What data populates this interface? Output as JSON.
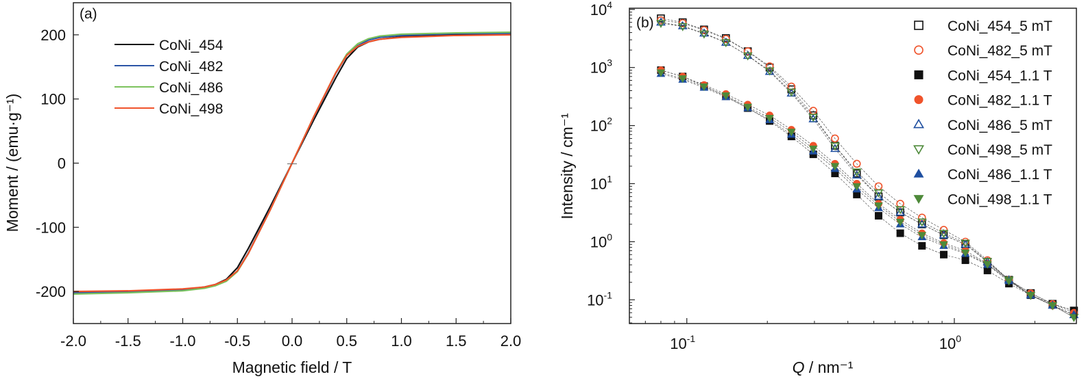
{
  "chart_data": [
    {
      "type": "line",
      "panel_label": "(a)",
      "xlabel": "Magnetic field / T",
      "ylabel": "Moment / (emu·g⁻¹)",
      "xlim": [
        -2.0,
        2.0
      ],
      "ylim": [
        -250,
        250
      ],
      "xticks": [
        -2.0,
        -1.5,
        -1.0,
        -0.5,
        0.0,
        0.5,
        1.0,
        1.5,
        2.0
      ],
      "xtick_labels": [
        "-2.0",
        "-1.5",
        "-1.0",
        "-0.5",
        "0.0",
        "0.5",
        "1.0",
        "1.5",
        "2.0"
      ],
      "yticks": [
        -200,
        -100,
        0,
        100,
        200
      ],
      "ytick_labels": [
        "-200",
        "-100",
        "0",
        "100",
        "200"
      ],
      "grid": false,
      "legend_position": "top-left",
      "x": [
        -2,
        -1.5,
        -1,
        -0.8,
        -0.7,
        -0.6,
        -0.5,
        -0.4,
        -0.2,
        0,
        0.2,
        0.4,
        0.5,
        0.6,
        0.7,
        0.8,
        1,
        1.5,
        2
      ],
      "series": [
        {
          "name": "CoNi_454",
          "color": "#111111",
          "values": [
            -201,
            -200,
            -197,
            -193,
            -189,
            -181,
            -163,
            -133,
            -68,
            0,
            68,
            133,
            163,
            181,
            189,
            193,
            197,
            200,
            201
          ]
        },
        {
          "name": "CoNi_482",
          "color": "#2b55a6",
          "values": [
            -202,
            -201,
            -198,
            -194,
            -190,
            -183,
            -168,
            -140,
            -72,
            0,
            72,
            140,
            168,
            183,
            192,
            196,
            199,
            202,
            202
          ]
        },
        {
          "name": "CoNi_486",
          "color": "#7cc25c",
          "values": [
            -204,
            -202,
            -199,
            -195,
            -191,
            -184,
            -169,
            -141,
            -73,
            0,
            73,
            141,
            170,
            186,
            194,
            198,
            201,
            203,
            204
          ]
        },
        {
          "name": "CoNi_498",
          "color": "#f0532b",
          "values": [
            -200,
            -199,
            -196,
            -193,
            -189,
            -182,
            -168,
            -141,
            -73,
            0,
            73,
            141,
            168,
            182,
            189,
            193,
            196,
            199,
            200
          ]
        }
      ]
    },
    {
      "type": "scatter",
      "panel_label": "(b)",
      "xlabel_italic": "Q",
      "xlabel_rest": " / nm⁻¹",
      "ylabel": "Intensity / cm⁻¹",
      "xscale": "log",
      "yscale": "log",
      "xlim": [
        0.061,
        2.86
      ],
      "ylim": [
        0.039,
        10500
      ],
      "xticks": [
        0.1,
        1
      ],
      "xtick_labels": [
        {
          "base": "10",
          "exp": "-1"
        },
        {
          "base": "10",
          "exp": "0"
        }
      ],
      "yticks": [
        0.1,
        1,
        10,
        100,
        1000,
        10000
      ],
      "ytick_labels": [
        {
          "base": "10",
          "exp": "-1"
        },
        {
          "base": "10",
          "exp": "0"
        },
        {
          "base": "10",
          "exp": "1"
        },
        {
          "base": "10",
          "exp": "2"
        },
        {
          "base": "10",
          "exp": "3"
        },
        {
          "base": "10",
          "exp": "4"
        }
      ],
      "grid": false,
      "legend_position": "top-right",
      "x": [
        0.08,
        0.0965,
        0.116,
        0.14,
        0.169,
        0.204,
        0.246,
        0.297,
        0.358,
        0.432,
        0.521,
        0.628,
        0.757,
        0.913,
        1.1,
        1.33,
        1.6,
        1.93,
        2.33,
        2.8
      ],
      "series": [
        {
          "name": "CoNi_454_5 mT",
          "marker": "square-open",
          "color": "#111111",
          "values": [
            7000,
            6000,
            4500,
            3200,
            1900,
            1000,
            420,
            150,
            45,
            15,
            6,
            3.2,
            2.0,
            1.3,
            0.9,
            0.45,
            0.22,
            0.13,
            0.085,
            0.065
          ]
        },
        {
          "name": "CoNi_482_5 mT",
          "marker": "circle-open",
          "color": "#f0532b",
          "values": [
            6500,
            5800,
            4400,
            3100,
            1900,
            1050,
            470,
            180,
            60,
            22,
            9,
            4.5,
            2.6,
            1.6,
            1.0,
            0.48,
            0.22,
            0.12,
            0.08,
            0.055
          ]
        },
        {
          "name": "CoNi_454_1.1 T",
          "marker": "square-filled",
          "color": "#111111",
          "values": [
            900,
            700,
            480,
            320,
            200,
            120,
            65,
            32,
            15,
            6.5,
            2.8,
            1.4,
            0.85,
            0.6,
            0.48,
            0.32,
            0.19,
            0.12,
            0.085,
            0.065
          ]
        },
        {
          "name": "CoNi_482_1.1 T",
          "marker": "circle-filled",
          "color": "#f0532b",
          "values": [
            900,
            700,
            500,
            350,
            230,
            150,
            85,
            45,
            22,
            10,
            4.5,
            2.4,
            1.4,
            0.95,
            0.7,
            0.42,
            0.22,
            0.13,
            0.085,
            0.06
          ]
        },
        {
          "name": "CoNi_486_5 mT",
          "marker": "triangle-up-open",
          "color": "#1f4fa0",
          "values": [
            6000,
            5200,
            3900,
            2700,
            1600,
            850,
            360,
            130,
            40,
            14,
            6,
            3.2,
            2.0,
            1.3,
            0.9,
            0.45,
            0.22,
            0.12,
            0.08,
            0.055
          ]
        },
        {
          "name": "CoNi_498_5 mT",
          "marker": "triangle-down-open",
          "color": "#4e8a3a",
          "values": [
            5800,
            5100,
            3800,
            2700,
            1600,
            880,
            380,
            140,
            45,
            16,
            7,
            3.6,
            2.2,
            1.4,
            0.95,
            0.46,
            0.22,
            0.12,
            0.08,
            0.05
          ]
        },
        {
          "name": "CoNi_486_1.1 T",
          "marker": "triangle-up-filled",
          "color": "#1f4fa0",
          "values": [
            780,
            620,
            450,
            310,
            200,
            125,
            70,
            36,
            18,
            8,
            3.8,
            2.0,
            1.2,
            0.85,
            0.62,
            0.4,
            0.21,
            0.12,
            0.08,
            0.055
          ]
        },
        {
          "name": "CoNi_498_1.1 T",
          "marker": "triangle-down-filled",
          "color": "#4e8a3a",
          "values": [
            820,
            650,
            470,
            330,
            210,
            135,
            78,
            40,
            20,
            9,
            4.2,
            2.2,
            1.3,
            0.9,
            0.65,
            0.41,
            0.21,
            0.12,
            0.08,
            0.05
          ]
        }
      ]
    }
  ]
}
